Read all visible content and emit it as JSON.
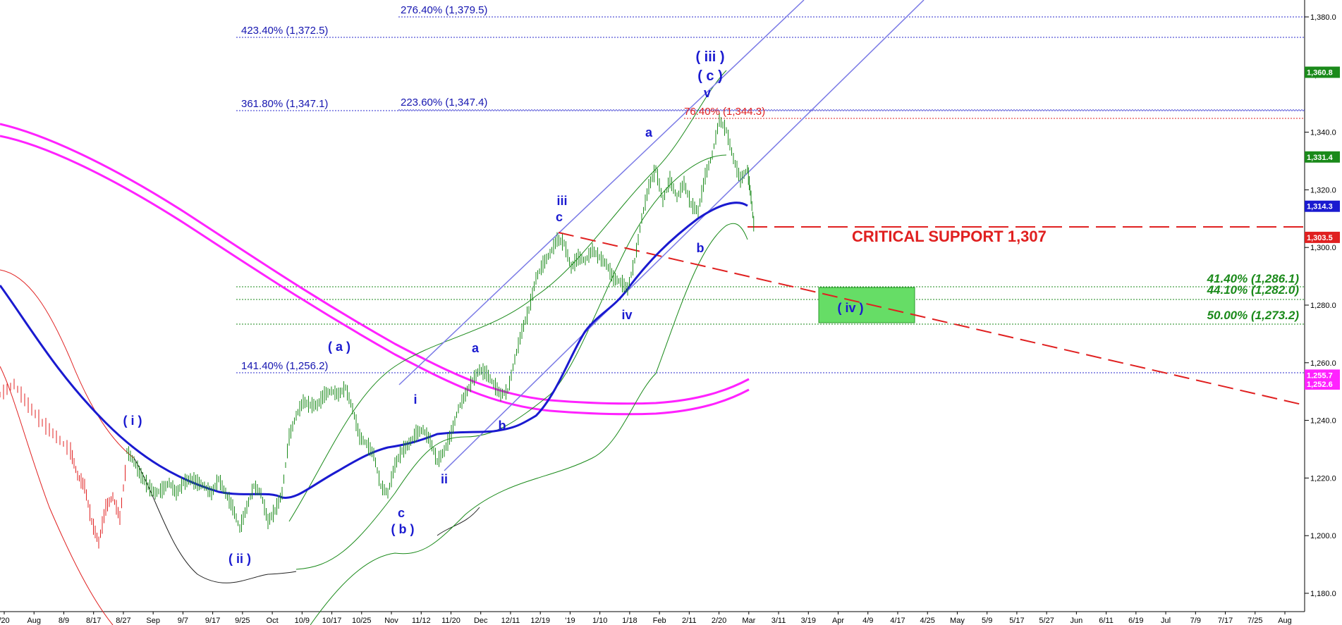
{
  "chart_data": {
    "type": "line",
    "y_axis": {
      "ylim": [
        1172,
        1388
      ],
      "ticks": [
        1180,
        1200,
        1220,
        1240,
        1260,
        1280,
        1300,
        1320,
        1340,
        1360,
        1380
      ],
      "tick_labels": [
        "1,180.0",
        "1,200.0",
        "1,220.0",
        "1,240.0",
        "1,260.0",
        "1,280.0",
        "1,300.0",
        "1,320.0",
        "1,340.0",
        "1,360.0",
        "1,380.0"
      ]
    },
    "x_axis": {
      "labels": [
        "/20",
        "Aug",
        "8/9",
        "8/17",
        "8/27",
        "Sep",
        "9/7",
        "9/17",
        "9/25",
        "Oct",
        "10/9",
        "10/17",
        "10/25",
        "Nov",
        "11/12",
        "11/20",
        "Dec",
        "12/11",
        "12/19",
        "'19",
        "1/10",
        "1/18",
        "Feb",
        "2/11",
        "2/20",
        "Mar",
        "3/11",
        "3/19",
        "Apr",
        "4/9",
        "4/17",
        "4/25",
        "May",
        "5/9",
        "5/17",
        "5/27",
        "Jun",
        "6/11",
        "6/19",
        "Jul",
        "7/9",
        "7/17",
        "7/25",
        "Aug"
      ]
    },
    "series": [],
    "price_tags": [
      {
        "text": "1,360.8",
        "value": 1360.8,
        "color": "#1a8a1a"
      },
      {
        "text": "1,331.4",
        "value": 1331.4,
        "color": "#1a8a1a"
      },
      {
        "text": "1,314.3",
        "value": 1314.3,
        "color": "#1a1ad0"
      },
      {
        "text": "1,303.5",
        "value": 1303.5,
        "color": "#e02020"
      },
      {
        "text": "1,255.7",
        "value": 1255.7,
        "color": "#ff22ff"
      },
      {
        "text": "1,252.6",
        "value": 1252.6,
        "color": "#ff22ff"
      }
    ],
    "fib_levels": [
      {
        "value": 1379.5,
        "label": "276.40% (1,379.5)",
        "color": "#1515b0"
      },
      {
        "value": 1372.5,
        "label": "423.40% (1,372.5)",
        "color": "#1515b0"
      },
      {
        "value": 1347.1,
        "label": "361.80% (1,347.1)",
        "color": "#1515b0"
      },
      {
        "value": 1347.4,
        "label": "223.60% (1,347.4)",
        "color": "#1515b0"
      },
      {
        "value": 1344.3,
        "label": "76.40% (1,344.3)",
        "color": "#e02020"
      },
      {
        "value": 1286.1,
        "label": "41.40% (1,286.1)",
        "color": "#1a8a1a"
      },
      {
        "value": 1282.0,
        "label": "44.10% (1,282.0)",
        "color": "#1a8a1a"
      },
      {
        "value": 1273.2,
        "label": "50.00% (1,273.2)",
        "color": "#1a8a1a"
      },
      {
        "value": 1256.2,
        "label": "141.40% (1,256.2)",
        "color": "#1515b0"
      }
    ],
    "critical_support": {
      "value": 1307,
      "label": "CRITICAL SUPPORT 1,307"
    },
    "wave_labels": [
      "( i )",
      "( ii )",
      "( a )",
      "c",
      "( b )",
      "i",
      "ii",
      "a",
      "b",
      "iii",
      "c",
      "iv",
      "a",
      "b",
      "v",
      "( c )",
      "( iii )",
      "( iv )"
    ],
    "target_box": {
      "label": "( iv )",
      "color": "#66dd66",
      "y_range": [
        1275.5,
        1287.5
      ]
    }
  }
}
